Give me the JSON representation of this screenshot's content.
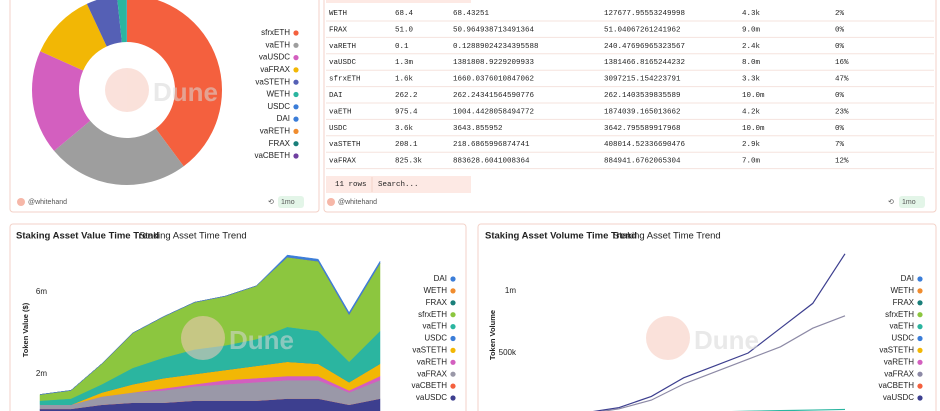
{
  "watermark": "Dune",
  "footers": [
    {
      "author": "@whitehand",
      "age": "1mo"
    },
    {
      "author": "@whitehand",
      "age": "1mo"
    }
  ],
  "table": {
    "rows": [
      [
        "WETH",
        "68.4",
        "68.43251",
        "127677.95553249998",
        "4.3k",
        "2%"
      ],
      [
        "FRAX",
        "51.0",
        "50.964938713491364",
        "51.04067261241962",
        "9.0m",
        "0%"
      ],
      [
        "vaRETH",
        "0.1",
        "0.12889024234395588",
        "240.47696965323567",
        "2.4k",
        "0%"
      ],
      [
        "vaUSDC",
        "1.3m",
        "1381808.9229209933",
        "1381466.8165244232",
        "8.0m",
        "16%"
      ],
      [
        "sfrxETH",
        "1.6k",
        "1660.0376010847062",
        "3097215.154223791",
        "3.3k",
        "47%"
      ],
      [
        "DAI",
        "262.2",
        "262.24341564590776",
        "262.1403539835589",
        "10.0m",
        "0%"
      ],
      [
        "vaETH",
        "975.4",
        "1004.4428058494772",
        "1874039.165013662",
        "4.2k",
        "23%"
      ],
      [
        "USDC",
        "3.6k",
        "3643.855952",
        "3642.795589917968",
        "10.0m",
        "0%"
      ],
      [
        "vaSTETH",
        "208.1",
        "218.6865996874741",
        "408014.52336690476",
        "2.9k",
        "7%"
      ],
      [
        "vaFRAX",
        "825.3k",
        "883628.6041008364",
        "884941.6762065304",
        "7.0m",
        "12%"
      ]
    ],
    "row_count": "11 rows",
    "search": "Search..."
  },
  "chart_data": [
    {
      "type": "pie",
      "categories": [
        "sfrxETH",
        "vaETH",
        "vaUSDC",
        "vaFRAX",
        "vaSTETH",
        "WETH",
        "USDC",
        "DAI",
        "vaRETH",
        "FRAX",
        "vaCBETH"
      ],
      "values": [
        3097215,
        1874039,
        1381467,
        884942,
        408015,
        127678,
        3643,
        262,
        240,
        51,
        100
      ],
      "colors": [
        "#f4603e",
        "#9e9e9e",
        "#d35fbf",
        "#f2b705",
        "#5560b5",
        "#2bb5a0",
        "#3b7dd8",
        "#3b7dd8",
        "#f08c2e",
        "#1a7f7a",
        "#6f3fa0"
      ]
    },
    {
      "type": "area",
      "title": "Staking Asset Value Time Trend",
      "subtitle": "Staking Asset Time Trend",
      "y_label": "Token Value ($)",
      "categories": [
        null,
        null,
        null,
        null,
        null,
        null,
        null,
        null,
        null,
        null,
        null,
        null
      ],
      "ylim": [
        0,
        8000000
      ],
      "yticks": [
        {
          "value": 2000000,
          "label": "2m"
        },
        {
          "value": 6000000,
          "label": "6m"
        }
      ],
      "series": [
        {
          "name": "DAI",
          "color": "#3b7dd8",
          "values": [
            0,
            0,
            0,
            0,
            0,
            0,
            0,
            0,
            100000,
            100000,
            100000,
            100000
          ]
        },
        {
          "name": "WETH",
          "color": "#f08c2e",
          "values": [
            0,
            0,
            0,
            0,
            0,
            0,
            0,
            0,
            0,
            0,
            0,
            0
          ]
        },
        {
          "name": "FRAX",
          "color": "#1a7f7a",
          "values": [
            0,
            0,
            0,
            0,
            0,
            0,
            0,
            0,
            0,
            0,
            0,
            0
          ]
        },
        {
          "name": "sfrxETH",
          "color": "#8cc63f",
          "values": [
            300000,
            400000,
            1000000,
            1700000,
            2000000,
            2300000,
            2400000,
            2600000,
            3400000,
            3400000,
            2300000,
            3300000
          ]
        },
        {
          "name": "vaETH",
          "color": "#2bb5a0",
          "values": [
            200000,
            300000,
            400000,
            800000,
            1000000,
            1200000,
            1200000,
            1300000,
            1700000,
            1600000,
            1000000,
            1600000
          ]
        },
        {
          "name": "USDC",
          "color": "#3b7dd8",
          "values": [
            0,
            0,
            0,
            0,
            0,
            0,
            0,
            0,
            0,
            0,
            0,
            0
          ]
        },
        {
          "name": "vaSTETH",
          "color": "#f2b705",
          "values": [
            0,
            0,
            200000,
            400000,
            500000,
            500000,
            500000,
            600000,
            700000,
            600000,
            400000,
            600000
          ]
        },
        {
          "name": "vaRETH",
          "color": "#d35fbf",
          "values": [
            0,
            0,
            0,
            0,
            100000,
            100000,
            200000,
            200000,
            200000,
            200000,
            100000,
            200000
          ]
        },
        {
          "name": "vaFRAX",
          "color": "#9a98a8",
          "values": [
            200000,
            200000,
            400000,
            500000,
            600000,
            700000,
            800000,
            900000,
            900000,
            900000,
            600000,
            900000
          ]
        },
        {
          "name": "vaCBETH",
          "color": "#f4603e",
          "values": [
            0,
            0,
            0,
            0,
            0,
            0,
            0,
            0,
            0,
            0,
            0,
            0
          ]
        },
        {
          "name": "vaUSDC",
          "color": "#3d3f8f",
          "values": [
            300000,
            300000,
            500000,
            600000,
            600000,
            700000,
            700000,
            700000,
            800000,
            800000,
            500000,
            800000
          ]
        }
      ]
    },
    {
      "type": "line",
      "title": "Staking Asset Volume Time Trend",
      "subtitle": "Staking Asset Time Trend",
      "y_label": "Token Volume",
      "categories": [
        null,
        null,
        null,
        null,
        null,
        null,
        null,
        null,
        null,
        null,
        null,
        null
      ],
      "ylim": [
        0,
        1300000
      ],
      "yticks": [
        {
          "value": 500000,
          "label": "500k"
        },
        {
          "value": 1000000,
          "label": "1m"
        }
      ],
      "series": [
        {
          "name": "DAI",
          "color": "#3b7dd8",
          "values": [
            null,
            null,
            null,
            0,
            0,
            0,
            0,
            0,
            0,
            0,
            0,
            0
          ]
        },
        {
          "name": "WETH",
          "color": "#f08c2e",
          "values": [
            null,
            null,
            null,
            0,
            0,
            0,
            0,
            0,
            0,
            0,
            0,
            0
          ]
        },
        {
          "name": "FRAX",
          "color": "#1a7f7a",
          "values": [
            null,
            null,
            null,
            0,
            0,
            0,
            0,
            0,
            0,
            0,
            0,
            0
          ]
        },
        {
          "name": "sfrxETH",
          "color": "#8cc63f",
          "values": [
            null,
            null,
            null,
            500,
            800,
            1000,
            1200,
            1300,
            1500,
            1600,
            1600,
            1700
          ]
        },
        {
          "name": "vaETH",
          "color": "#2bb5a0",
          "values": [
            null,
            null,
            null,
            5000,
            10000,
            15000,
            20000,
            25000,
            30000,
            35000,
            40000,
            45000
          ]
        },
        {
          "name": "USDC",
          "color": "#3b7dd8",
          "values": [
            null,
            null,
            null,
            0,
            0,
            0,
            0,
            0,
            0,
            0,
            0,
            0
          ]
        },
        {
          "name": "vaSTETH",
          "color": "#f2b705",
          "values": [
            null,
            null,
            null,
            2000,
            5000,
            8000,
            10000,
            12000,
            15000,
            18000,
            20000,
            22000
          ]
        },
        {
          "name": "vaRETH",
          "color": "#d35fbf",
          "values": [
            null,
            null,
            null,
            0,
            0,
            0,
            0,
            0,
            0,
            0,
            0,
            0
          ]
        },
        {
          "name": "vaFRAX",
          "color": "#8d8aa6",
          "values": [
            null,
            null,
            null,
            10000,
            50000,
            120000,
            250000,
            350000,
            450000,
            550000,
            700000,
            800000
          ]
        },
        {
          "name": "vaCBETH",
          "color": "#f4603e",
          "values": [
            null,
            null,
            null,
            0,
            0,
            0,
            0,
            0,
            0,
            0,
            0,
            0
          ]
        },
        {
          "name": "vaUSDC",
          "color": "#3d3f8f",
          "values": [
            null,
            null,
            null,
            20000,
            60000,
            150000,
            300000,
            400000,
            500000,
            700000,
            900000,
            1300000
          ]
        }
      ]
    }
  ]
}
